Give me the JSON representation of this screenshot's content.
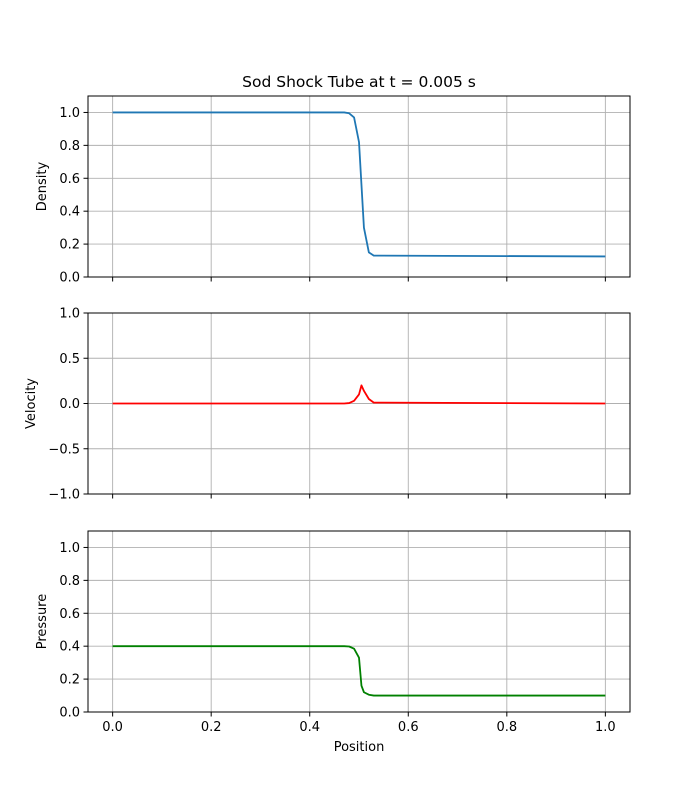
{
  "chart_data": [
    {
      "type": "line",
      "title": "Sod Shock Tube at t = 0.005 s",
      "xlabel": "",
      "ylabel": "Density",
      "xlim": [
        -0.05,
        1.05
      ],
      "ylim": [
        0,
        1.1
      ],
      "xticks": [
        0.0,
        0.2,
        0.4,
        0.6,
        0.8,
        1.0
      ],
      "xtick_labels": [],
      "yticks": [
        0.0,
        0.2,
        0.4,
        0.6,
        0.8,
        1.0
      ],
      "ytick_labels": [
        "0.0",
        "0.2",
        "0.4",
        "0.6",
        "0.8",
        "1.0"
      ],
      "grid": true,
      "series": [
        {
          "color": "#1f77b4",
          "x": [
            0.0,
            0.47,
            0.48,
            0.49,
            0.5,
            0.51,
            0.52,
            0.53,
            1.0
          ],
          "y": [
            1.0,
            1.0,
            0.995,
            0.97,
            0.82,
            0.3,
            0.15,
            0.13,
            0.125
          ]
        }
      ]
    },
    {
      "type": "line",
      "title": "",
      "xlabel": "",
      "ylabel": "Velocity",
      "xlim": [
        -0.05,
        1.05
      ],
      "ylim": [
        -1.0,
        1.0
      ],
      "xticks": [
        0.0,
        0.2,
        0.4,
        0.6,
        0.8,
        1.0
      ],
      "xtick_labels": [],
      "yticks": [
        -1.0,
        -0.5,
        0.0,
        0.5,
        1.0
      ],
      "ytick_labels": [
        "−1.0",
        "−0.5",
        "0.0",
        "0.5",
        "1.0"
      ],
      "grid": true,
      "series": [
        {
          "color": "#ff0000",
          "x": [
            0.0,
            0.47,
            0.48,
            0.49,
            0.5,
            0.505,
            0.51,
            0.52,
            0.53,
            1.0
          ],
          "y": [
            0.0,
            0.0,
            0.005,
            0.03,
            0.1,
            0.2,
            0.14,
            0.05,
            0.01,
            0.0
          ]
        }
      ]
    },
    {
      "type": "line",
      "title": "",
      "xlabel": "Position",
      "ylabel": "Pressure",
      "xlim": [
        -0.05,
        1.05
      ],
      "ylim": [
        0,
        1.1
      ],
      "xticks": [
        0.0,
        0.2,
        0.4,
        0.6,
        0.8,
        1.0
      ],
      "xtick_labels": [
        "0.0",
        "0.2",
        "0.4",
        "0.6",
        "0.8",
        "1.0"
      ],
      "yticks": [
        0.0,
        0.2,
        0.4,
        0.6,
        0.8,
        1.0
      ],
      "ytick_labels": [
        "0.0",
        "0.2",
        "0.4",
        "0.6",
        "0.8",
        "1.0"
      ],
      "grid": true,
      "series": [
        {
          "color": "#008000",
          "x": [
            0.0,
            0.47,
            0.48,
            0.49,
            0.5,
            0.505,
            0.51,
            0.52,
            0.53,
            1.0
          ],
          "y": [
            0.4,
            0.4,
            0.398,
            0.385,
            0.33,
            0.16,
            0.12,
            0.105,
            0.1,
            0.1
          ]
        }
      ]
    }
  ]
}
